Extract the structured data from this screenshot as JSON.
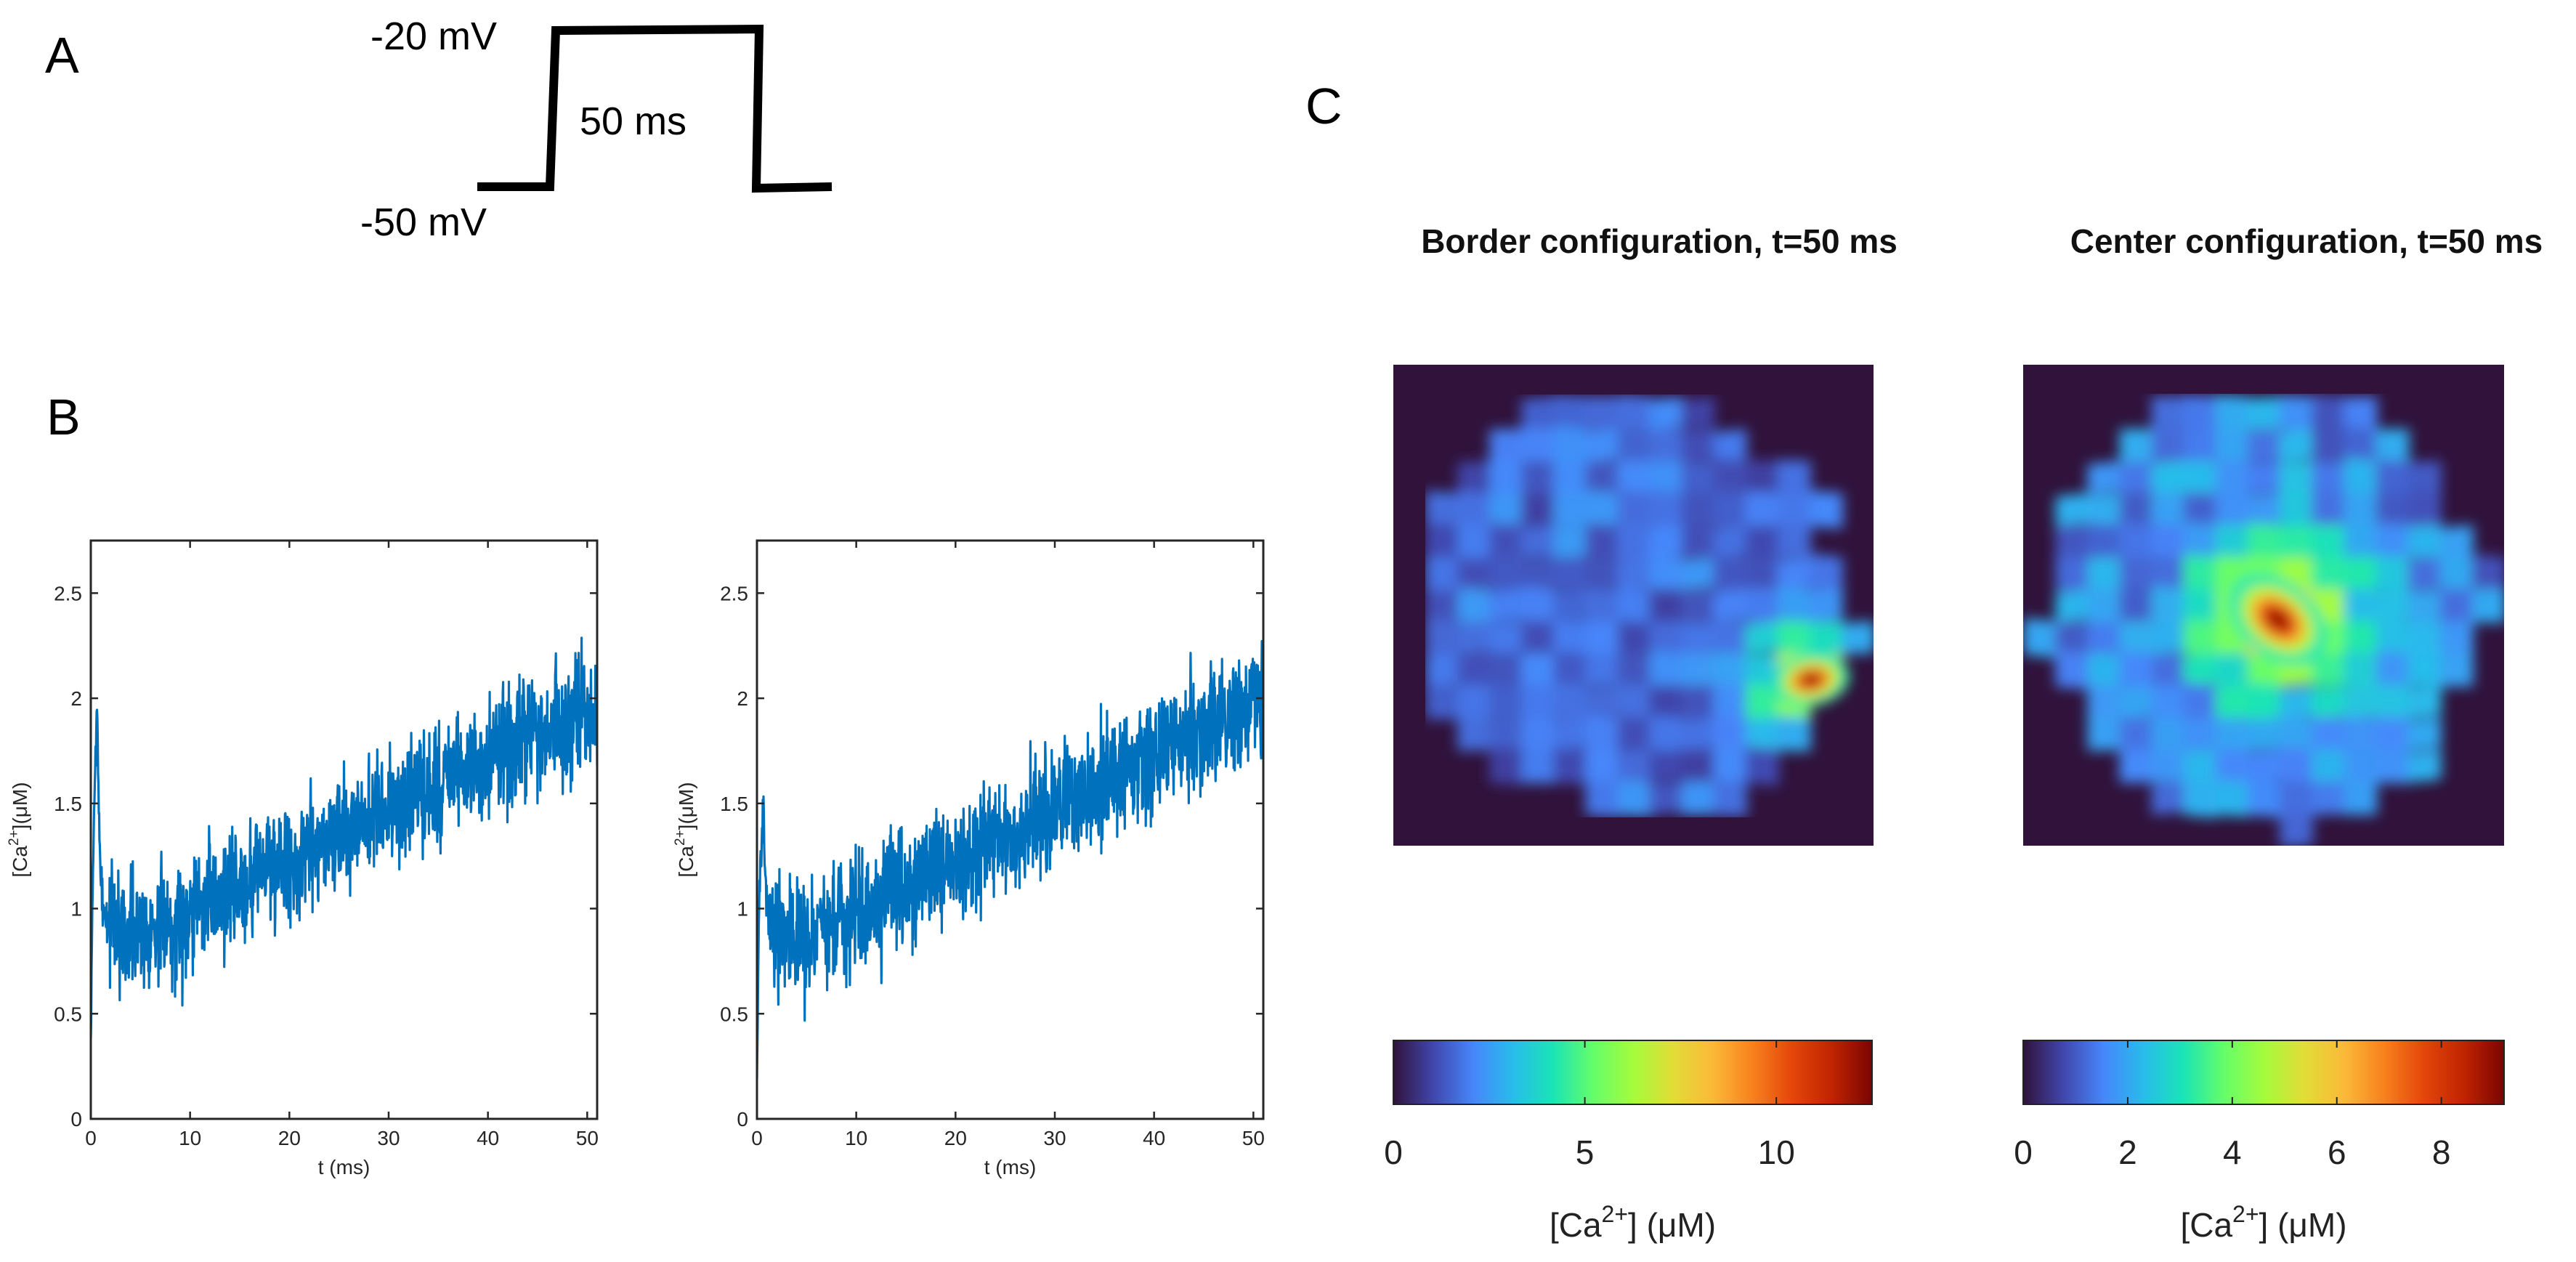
{
  "panels": {
    "A": {
      "letter": "A",
      "high_label": "-20 mV",
      "low_label": "-50 mV",
      "duration_label": "50 ms",
      "stimulus": {
        "low_mV": -50,
        "high_mV": -20,
        "duration_ms": 50
      }
    },
    "B": {
      "letter": "B"
    },
    "C": {
      "letter": "C"
    }
  },
  "colors": {
    "trace": "#0072bd",
    "axes": "#262626",
    "heatmap_bg": "#30123b",
    "jet": [
      "#30123b",
      "#4146ac",
      "#4686fb",
      "#28bceb",
      "#1ae4b6",
      "#64fd6a",
      "#a4fc3c",
      "#e1dd37",
      "#fbb938",
      "#f8811e",
      "#e4460a",
      "#c02301",
      "#7a0403"
    ]
  },
  "chart_data": [
    {
      "type": "line",
      "panel": "B-left",
      "title": "",
      "xlabel": "t (ms)",
      "ylabel_base": "[Ca",
      "ylabel_sup": "2+",
      "ylabel_tail": "](μM)",
      "xlim": [
        0,
        51
      ],
      "ylim": [
        0,
        2.75
      ],
      "xticks": [
        0,
        10,
        20,
        30,
        40,
        50
      ],
      "yticks": [
        0,
        0.5,
        1,
        1.5,
        2,
        2.5
      ],
      "xtick_labels": [
        "0",
        "10",
        "20",
        "30",
        "40",
        "50"
      ],
      "ytick_labels": [
        "0",
        "0.5",
        "1",
        "1.5",
        "2",
        "2.5"
      ],
      "trend": {
        "x": [
          0,
          0.2,
          0.6,
          1.0,
          1.4,
          2.2,
          5,
          51
        ],
        "y": [
          0.35,
          1.2,
          1.95,
          1.1,
          0.95,
          0.95,
          0.88,
          1.95
        ]
      },
      "noise": 0.24,
      "seed": 7
    },
    {
      "type": "line",
      "panel": "B-right",
      "title": "",
      "xlabel": "t (ms)",
      "ylabel_base": "[Ca",
      "ylabel_sup": "2+",
      "ylabel_tail": "](μM)",
      "xlim": [
        0,
        51
      ],
      "ylim": [
        0,
        2.75
      ],
      "xticks": [
        0,
        10,
        20,
        30,
        40,
        50
      ],
      "yticks": [
        0,
        0.5,
        1,
        1.5,
        2,
        2.5
      ],
      "xtick_labels": [
        "0",
        "10",
        "20",
        "30",
        "40",
        "50"
      ],
      "ytick_labels": [
        "0",
        "0.5",
        "1",
        "1.5",
        "2",
        "2.5"
      ],
      "trend": {
        "x": [
          0,
          0.2,
          0.6,
          1.0,
          1.4,
          2.2,
          5,
          51
        ],
        "y": [
          0.2,
          1.0,
          1.45,
          1.0,
          0.9,
          0.88,
          0.85,
          2.0
        ]
      },
      "noise": 0.24,
      "seed": 13
    },
    {
      "type": "heatmap",
      "panel": "C-left",
      "title": "Border configuration, t=50 ms",
      "colorbar_label_base": "[Ca",
      "colorbar_label_sup": "2+",
      "colorbar_label_tail": "] (μM)",
      "clim": [
        0,
        12.5
      ],
      "colorbar_ticks": [
        0,
        5,
        10
      ],
      "colorbar_tick_labels": [
        "0",
        "5",
        "10"
      ],
      "background_level": 0,
      "base_level": 1.7,
      "hotspot": {
        "x": 0.87,
        "y": 0.655,
        "peak": 12.5,
        "sigma": 0.035
      },
      "seed": 21
    },
    {
      "type": "heatmap",
      "panel": "C-right",
      "title": "Center configuration, t=50 ms",
      "colorbar_label_base": "[Ca",
      "colorbar_label_sup": "2+",
      "colorbar_label_tail": "] (μM)",
      "clim": [
        0,
        9.2
      ],
      "colorbar_ticks": [
        0,
        2,
        4,
        6,
        8
      ],
      "colorbar_tick_labels": [
        "0",
        "2",
        "4",
        "6",
        "8"
      ],
      "background_level": 0,
      "base_level": 1.6,
      "hotspot": {
        "x": 0.53,
        "y": 0.53,
        "peak": 9.2,
        "sigma": 0.05
      },
      "seed": 33
    }
  ]
}
